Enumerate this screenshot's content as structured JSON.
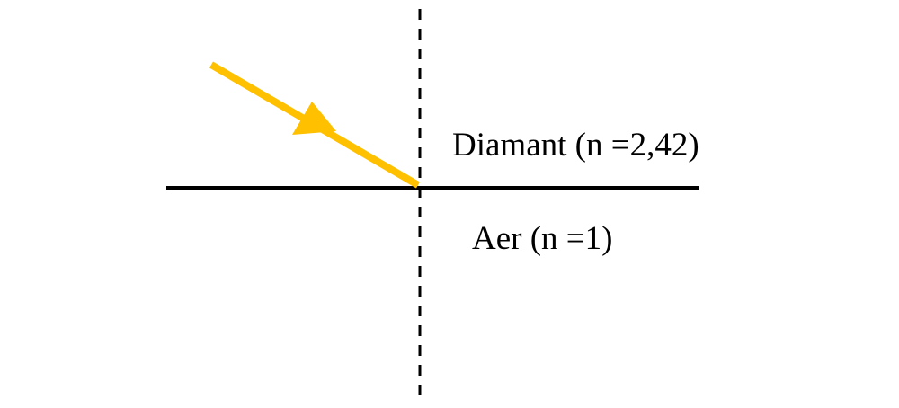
{
  "diagram": {
    "medium_top_label": "Diamant (n =2,42)",
    "medium_bottom_label": "Aer (n =1)"
  },
  "colors": {
    "ray": "#FFC000",
    "line": "#000000",
    "background": "#FFFFFF"
  },
  "icons": {
    "ray_arrow": "arrowhead-icon"
  }
}
